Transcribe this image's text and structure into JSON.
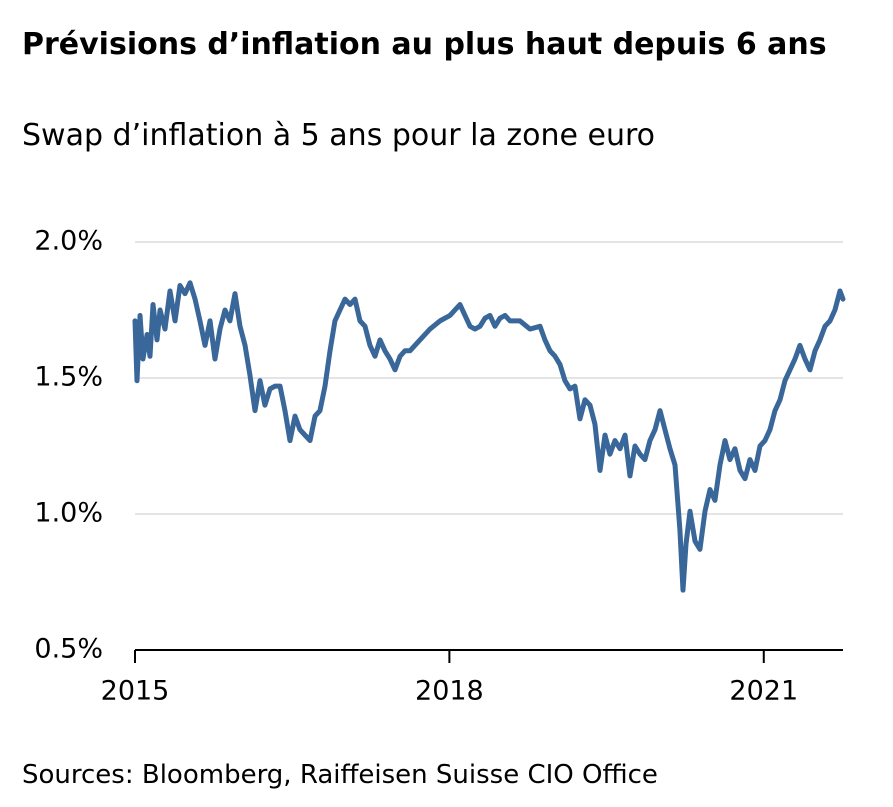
{
  "chart_data": {
    "type": "line",
    "title": "Prévisions d’inflation au plus haut depuis 6 ans",
    "subtitle": "Swap d’inflation à 5 ans pour la zone euro",
    "source": "Sources: Bloomberg, Raiffeisen Suisse CIO Office",
    "x": [
      2015.0,
      2015.019,
      2015.048,
      2015.076,
      2015.115,
      2015.143,
      2015.172,
      2015.21,
      2015.239,
      2015.286,
      2015.334,
      2015.382,
      2015.429,
      2015.477,
      2015.525,
      2015.573,
      2015.62,
      2015.668,
      2015.716,
      2015.763,
      2015.811,
      2015.859,
      2015.906,
      2015.954,
      2016.002,
      2016.05,
      2016.097,
      2016.145,
      2016.193,
      2016.24,
      2016.288,
      2016.336,
      2016.384,
      2016.431,
      2016.479,
      2016.527,
      2016.574,
      2016.622,
      2016.67,
      2016.718,
      2016.765,
      2016.813,
      2016.861,
      2016.908,
      2016.956,
      2017.004,
      2017.052,
      2017.099,
      2017.147,
      2017.195,
      2017.242,
      2017.29,
      2017.338,
      2017.385,
      2017.433,
      2017.481,
      2017.529,
      2017.576,
      2017.624,
      2017.719,
      2017.815,
      2017.91,
      2018.006,
      2018.053,
      2018.101,
      2018.149,
      2018.197,
      2018.244,
      2018.292,
      2018.34,
      2018.387,
      2018.435,
      2018.483,
      2018.531,
      2018.578,
      2018.674,
      2018.769,
      2018.865,
      2018.912,
      2018.96,
      2019.008,
      2019.055,
      2019.103,
      2019.151,
      2019.198,
      2019.246,
      2019.294,
      2019.342,
      2019.389,
      2019.437,
      2019.485,
      2019.532,
      2019.58,
      2019.628,
      2019.676,
      2019.723,
      2019.771,
      2019.819,
      2019.866,
      2019.914,
      2019.962,
      2020.01,
      2020.057,
      2020.105,
      2020.153,
      2020.2,
      2020.229,
      2020.258,
      2020.296,
      2020.344,
      2020.391,
      2020.439,
      2020.487,
      2020.534,
      2020.582,
      2020.63,
      2020.677,
      2020.725,
      2020.773,
      2020.821,
      2020.868,
      2020.916,
      2020.964,
      2021.011,
      2021.059,
      2021.107,
      2021.155,
      2021.202,
      2021.25,
      2021.298,
      2021.345,
      2021.393,
      2021.441,
      2021.489,
      2021.536,
      2021.584,
      2021.632,
      2021.679,
      2021.727,
      2021.756
    ],
    "values": [
      1.71,
      1.49,
      1.73,
      1.57,
      1.66,
      1.58,
      1.77,
      1.64,
      1.75,
      1.68,
      1.82,
      1.71,
      1.84,
      1.81,
      1.85,
      1.79,
      1.71,
      1.62,
      1.71,
      1.57,
      1.68,
      1.75,
      1.71,
      1.81,
      1.69,
      1.62,
      1.51,
      1.38,
      1.49,
      1.4,
      1.46,
      1.47,
      1.47,
      1.38,
      1.27,
      1.36,
      1.31,
      1.29,
      1.27,
      1.36,
      1.38,
      1.47,
      1.6,
      1.71,
      1.75,
      1.79,
      1.77,
      1.79,
      1.71,
      1.69,
      1.62,
      1.58,
      1.64,
      1.6,
      1.57,
      1.53,
      1.58,
      1.6,
      1.6,
      1.64,
      1.68,
      1.71,
      1.73,
      1.75,
      1.77,
      1.73,
      1.69,
      1.68,
      1.69,
      1.72,
      1.73,
      1.69,
      1.72,
      1.73,
      1.71,
      1.71,
      1.68,
      1.69,
      1.64,
      1.6,
      1.58,
      1.55,
      1.49,
      1.46,
      1.47,
      1.35,
      1.42,
      1.4,
      1.33,
      1.16,
      1.29,
      1.22,
      1.27,
      1.24,
      1.29,
      1.14,
      1.25,
      1.22,
      1.2,
      1.27,
      1.31,
      1.38,
      1.31,
      1.24,
      1.18,
      0.94,
      0.72,
      0.89,
      1.01,
      0.9,
      0.87,
      1.01,
      1.09,
      1.05,
      1.18,
      1.27,
      1.2,
      1.24,
      1.16,
      1.13,
      1.2,
      1.16,
      1.25,
      1.27,
      1.31,
      1.38,
      1.42,
      1.49,
      1.53,
      1.57,
      1.62,
      1.57,
      1.53,
      1.6,
      1.64,
      1.69,
      1.71,
      1.75,
      1.82,
      1.79
    ],
    "color": "#3a6799",
    "xlim": [
      2015,
      2021.756
    ],
    "xticks": [
      2015,
      2018,
      2021
    ],
    "ylim": [
      0.5,
      2.0
    ],
    "yticks": [
      {
        "value": 0.5,
        "label": "0.5%"
      },
      {
        "value": 1.0,
        "label": "1.0%"
      },
      {
        "value": 1.5,
        "label": "1.5%"
      },
      {
        "value": 2.0,
        "label": "2.0%"
      }
    ],
    "grid": true
  }
}
